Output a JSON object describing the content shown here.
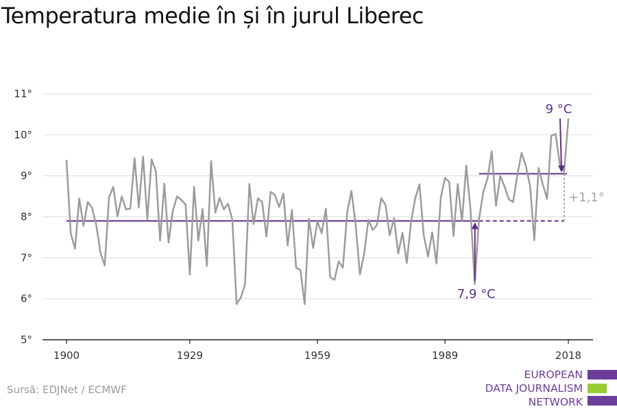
{
  "chart_data": {
    "type": "line",
    "title": "Temperatura medie în și în jurul Liberec",
    "source": "Sursă: EDJNet / ECMWF",
    "x_ticks": [
      1900,
      1929,
      1959,
      1989,
      2018
    ],
    "y_ticks": [
      "5°",
      "6°",
      "7°",
      "8°",
      "9°",
      "10°",
      "11°"
    ],
    "xlim": [
      1900,
      2018
    ],
    "ylim": [
      5,
      11
    ],
    "series": [
      {
        "x": [
          1900,
          1901,
          1902,
          1903,
          1904,
          1905,
          1906,
          1907,
          1908,
          1909,
          1910,
          1911,
          1912,
          1913,
          1914,
          1915,
          1916,
          1917,
          1918,
          1919,
          1920,
          1921,
          1922,
          1923,
          1924,
          1925,
          1926,
          1927,
          1928,
          1929,
          1930,
          1931,
          1932,
          1933,
          1934,
          1935,
          1936,
          1937,
          1938,
          1939,
          1940,
          1941,
          1942,
          1943,
          1944,
          1945,
          1946,
          1947,
          1948,
          1949,
          1950,
          1951,
          1952,
          1953,
          1954,
          1955,
          1956,
          1957,
          1958,
          1959,
          1960,
          1961,
          1962,
          1963,
          1964,
          1965,
          1966,
          1967,
          1968,
          1969,
          1970,
          1971,
          1972,
          1973,
          1974,
          1975,
          1976,
          1977,
          1978,
          1979,
          1980,
          1981,
          1982,
          1983,
          1984,
          1985,
          1986,
          1987,
          1988,
          1989,
          1990,
          1991,
          1992,
          1993,
          1994,
          1995,
          1996,
          1997,
          1998,
          1999,
          2000,
          2001,
          2002,
          2003,
          2004,
          2005,
          2006,
          2007,
          2008,
          2009,
          2010,
          2011,
          2012,
          2013,
          2014,
          2015,
          2016,
          2017,
          2018
        ],
        "y": [
          9.37,
          7.6,
          7.22,
          8.45,
          7.78,
          8.36,
          8.22,
          7.8,
          7.12,
          6.81,
          8.48,
          8.73,
          8.01,
          8.5,
          8.18,
          8.2,
          9.43,
          8.22,
          9.47,
          7.94,
          9.4,
          9.12,
          7.42,
          8.81,
          7.37,
          8.15,
          8.5,
          8.41,
          8.3,
          6.59,
          8.73,
          7.42,
          8.19,
          6.8,
          9.36,
          8.1,
          8.46,
          8.18,
          8.32,
          7.93,
          5.87,
          6.03,
          6.36,
          8.8,
          7.82,
          8.45,
          8.36,
          7.52,
          8.61,
          8.53,
          8.24,
          8.57,
          7.3,
          8.17,
          6.76,
          6.7,
          5.87,
          7.95,
          7.24,
          7.89,
          7.6,
          8.2,
          6.53,
          6.46,
          6.91,
          6.76,
          8.1,
          8.63,
          7.8,
          6.59,
          7.09,
          7.93,
          7.68,
          7.8,
          8.46,
          8.29,
          7.55,
          7.97,
          7.1,
          7.61,
          6.87,
          7.86,
          8.45,
          8.79,
          7.55,
          7.03,
          7.62,
          6.86,
          8.46,
          8.95,
          8.85,
          7.53,
          8.8,
          7.89,
          9.25,
          8.18,
          6.36,
          7.94,
          8.6,
          8.93,
          9.6,
          8.27,
          9.0,
          8.74,
          8.43,
          8.36,
          9.01,
          9.56,
          9.25,
          8.75,
          7.43,
          9.19,
          8.79,
          8.44,
          9.98,
          10.02,
          9.28,
          9.1,
          10.38
        ]
      }
    ],
    "reference_lines": [
      {
        "label": "7,9 °C",
        "y": 7.9,
        "x_range": [
          1900,
          2018
        ],
        "dashed_from": 1997
      },
      {
        "label": "9 °C",
        "y": 9.05,
        "x_range": [
          1997,
          2017
        ]
      }
    ],
    "difference_label": "+1,1°",
    "colors": {
      "series": "#9b9b9b",
      "reference": "#5f2c8c",
      "difference": "#a5a5a5",
      "grid": "#dcdcdc",
      "axis": "#222222"
    }
  },
  "footer": {
    "source": "Sursă: EDJNet / ECMWF"
  },
  "logo": {
    "line1": "EUROPEAN",
    "line2": "DATA JOURNALISM",
    "line3": "NETWORK",
    "colors": {
      "purple": "#6a3d9a",
      "green": "#9acd32"
    }
  }
}
